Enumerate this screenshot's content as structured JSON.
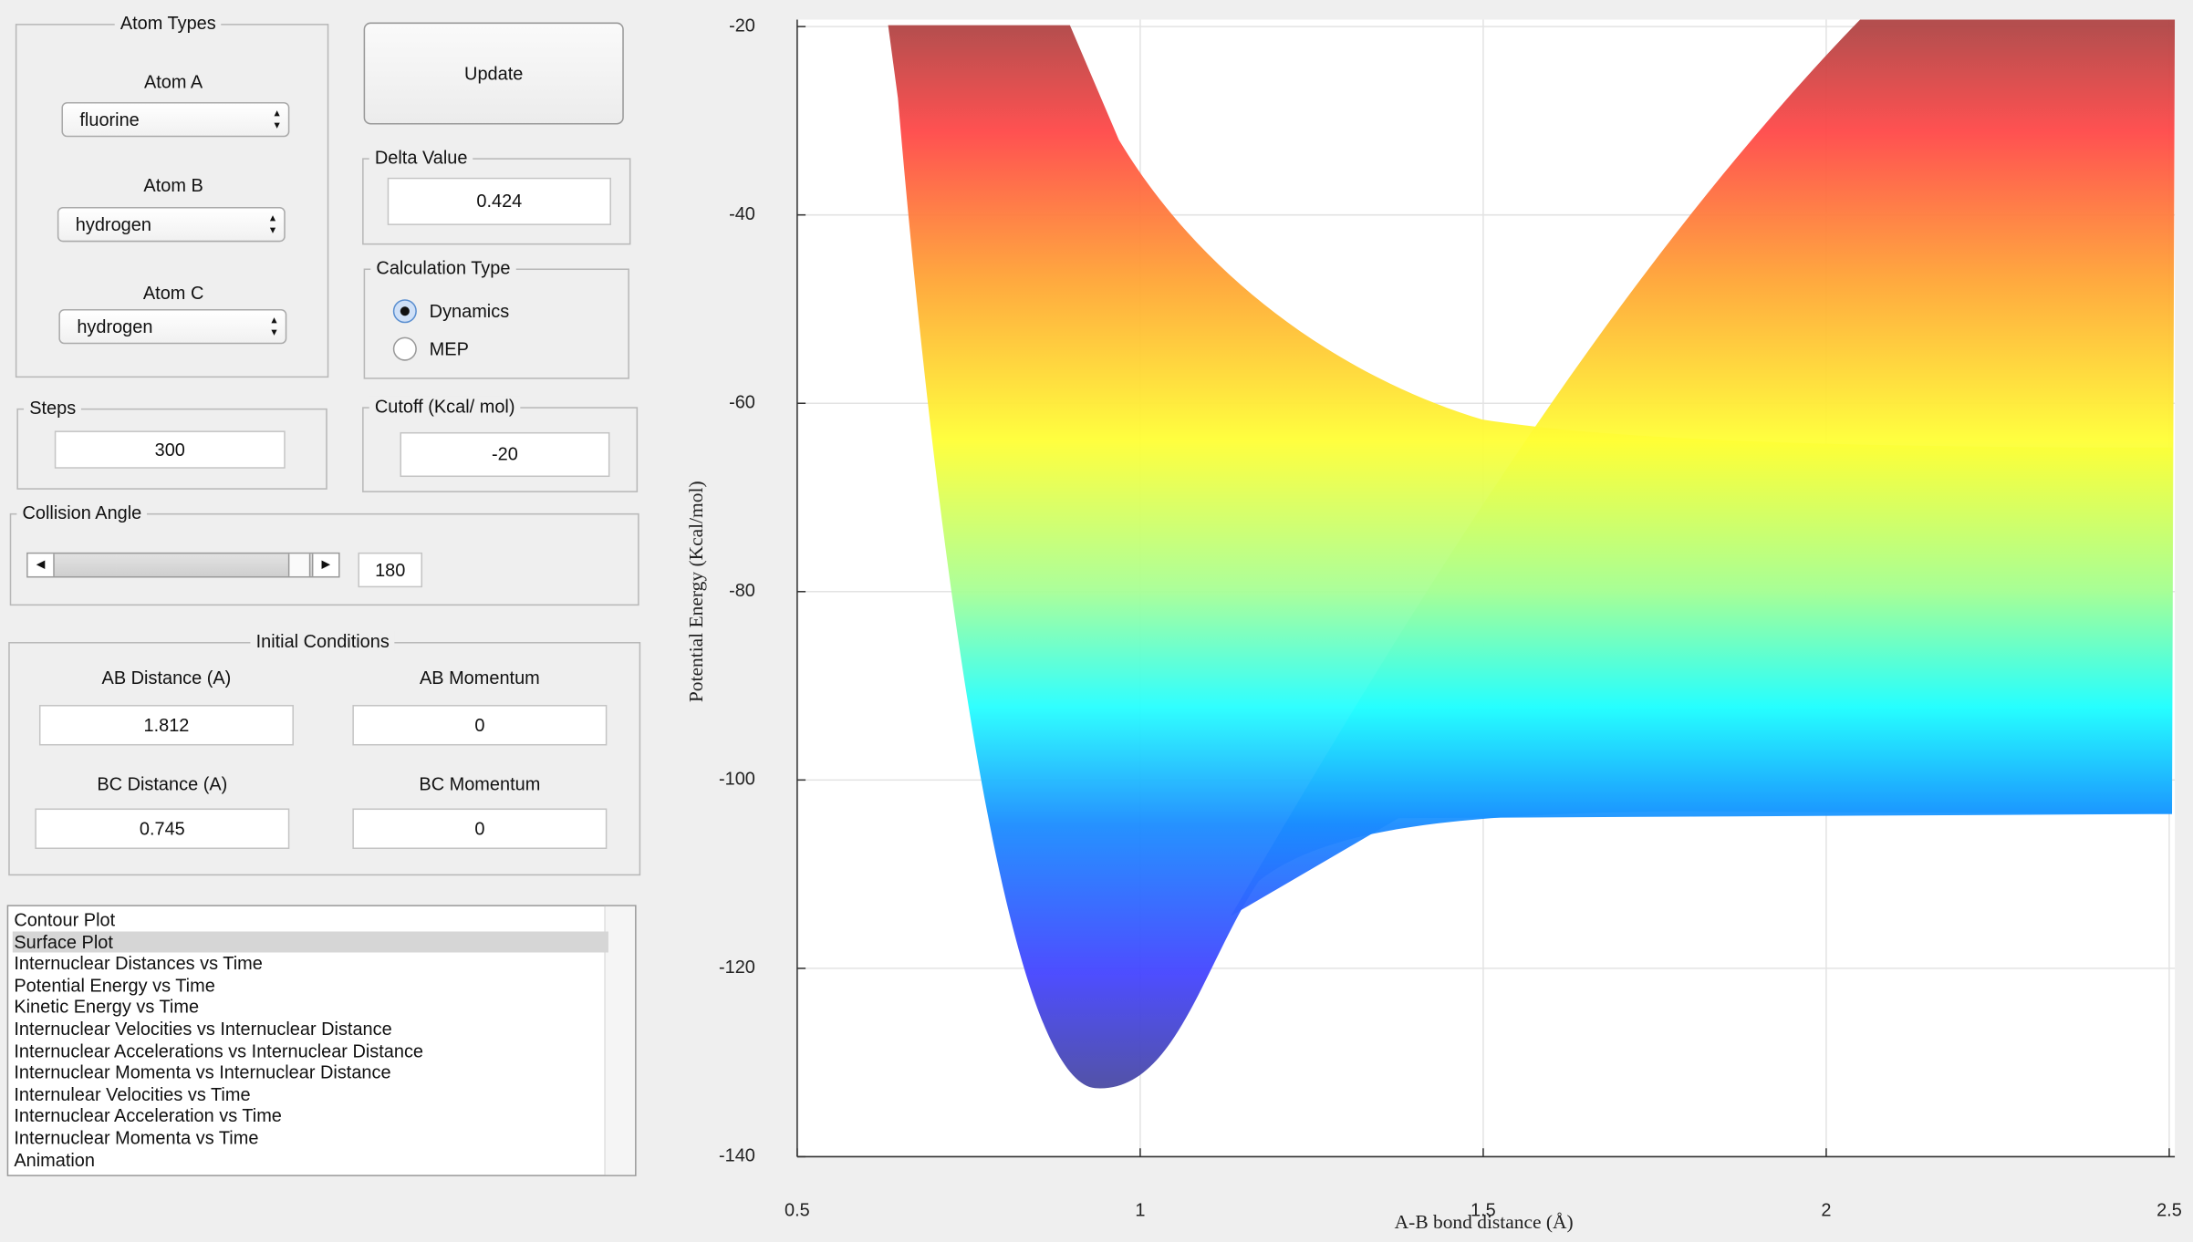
{
  "panel": {
    "atom_types": {
      "title": "Atom Types",
      "atom_a_label": "Atom A",
      "atom_a": "fluorine",
      "atom_b_label": "Atom B",
      "atom_b": "hydrogen",
      "atom_c_label": "Atom C",
      "atom_c": "hydrogen"
    },
    "update": "Update",
    "delta": {
      "title": "Delta Value",
      "value": "0.424"
    },
    "calc_type": {
      "title": "Calculation Type",
      "options": [
        "Dynamics",
        "MEP"
      ]
    },
    "steps": {
      "title": "Steps",
      "value": "300"
    },
    "cutoff": {
      "title": "Cutoff (Kcal/ mol)",
      "value": "-20"
    },
    "collision_angle": {
      "title": "Collision Angle",
      "value": "180"
    },
    "initial_conditions": {
      "title": "Initial Conditions",
      "ab_distance_label": "AB Distance (A)",
      "ab_distance": "1.812",
      "ab_momentum_label": "AB Momentum",
      "ab_momentum": "0",
      "bc_distance_label": "BC Distance (A)",
      "bc_distance": "0.745",
      "bc_momentum_label": "BC Momentum",
      "bc_momentum": "0"
    },
    "plot_list": [
      "Contour Plot",
      "Surface Plot",
      "Internuclear Distances vs Time",
      "Potential Energy vs Time",
      "Kinetic Energy vs Time",
      "Internuclear Velocities vs Internuclear Distance",
      "Internuclear Accelerations vs Internuclear Distance",
      "Internuclear Momenta vs Internuclear Distance",
      "Internulear Velocities vs Time",
      "Internuclear Acceleration vs Time",
      "Internuclear Momenta vs Time",
      "Animation"
    ]
  },
  "chart_data": {
    "type": "surface",
    "y_label": "Potential Energy (Kcal/mol)",
    "x_label": "A-B bond distance (Å)",
    "ylim": [
      -140,
      -20
    ],
    "yticks": [
      -20,
      -40,
      -60,
      -80,
      -100,
      -120,
      -140
    ],
    "xlim": [
      0.5,
      2.5
    ],
    "xticks": [
      0.5,
      1,
      1.5,
      2,
      2.5
    ],
    "grid": true
  }
}
